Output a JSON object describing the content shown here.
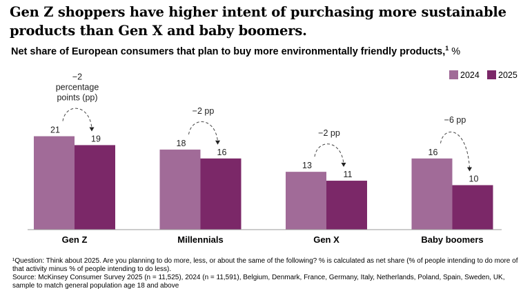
{
  "title": "Gen Z shoppers have higher intent of purchasing more sustainable products than Gen X and baby boomers.",
  "subtitle": {
    "text": "Net share of European consumers that plan to buy more environmentally friendly products,",
    "sup": "1",
    "unit": " %"
  },
  "colors": {
    "series_2024": "#a16b98",
    "series_2025": "#7b2868",
    "axis": "#9a9a9a"
  },
  "chart_data": {
    "type": "bar",
    "categories": [
      "Gen Z",
      "Millennials",
      "Gen X",
      "Baby boomers"
    ],
    "series": [
      {
        "name": "2024",
        "values": [
          21,
          18,
          13,
          16
        ]
      },
      {
        "name": "2025",
        "values": [
          19,
          16,
          11,
          10
        ]
      }
    ],
    "annotations": [
      {
        "category": "Gen Z",
        "text": [
          "−2",
          "percentage",
          "points (pp)"
        ]
      },
      {
        "category": "Millennials",
        "text": [
          "−2 pp"
        ]
      },
      {
        "category": "Gen X",
        "text": [
          "−2 pp"
        ]
      },
      {
        "category": "Baby boomers",
        "text": [
          "−6 pp"
        ]
      }
    ],
    "legend_position": "top-right",
    "grid": false
  },
  "footnotes": [
    "¹Question: Think about 2025. Are you planning to do more, less, or about the same of the following? % is calculated as net share (% of people intending to do more of that activity minus % of people intending to do less).",
    "Source: McKinsey Consumer Survey 2025 (n = 11,525), 2024 (n = 11,591), Belgium, Denmark, France, Germany, Italy, Netherlands, Poland, Spain, Sweden, UK, sample to match general population age 18 and above"
  ]
}
